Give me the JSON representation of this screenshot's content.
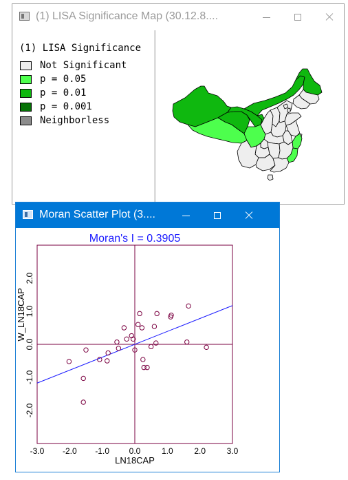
{
  "lisa_window": {
    "title": "(1) LISA Significance Map (30.12.8....",
    "legend": {
      "title": "(1) LISA Significance",
      "items": [
        {
          "label": "Not Significant",
          "color": "#eeeeee"
        },
        {
          "label": "p = 0.05",
          "color": "#4dff4d"
        },
        {
          "label": "p = 0.01",
          "color": "#0fb80f"
        },
        {
          "label": "p = 0.001",
          "color": "#067206"
        },
        {
          "label": "Neighborless",
          "color": "#8c8c8c"
        }
      ]
    }
  },
  "moran_window": {
    "title": "Moran Scatter Plot (3...."
  },
  "chart_data": {
    "type": "scatter",
    "title": "Moran's I = 0.3905",
    "xlabel": "LN18CAP",
    "ylabel": "W_LN18CAP",
    "xlim": [
      -3.0,
      3.0
    ],
    "ylim": [
      -3.0,
      3.0
    ],
    "x_ticks": [
      "-3.0",
      "-2.0",
      "-1.0",
      "0.0",
      "1.0",
      "2.0",
      "3.0"
    ],
    "y_ticks": [
      "-2.0",
      "-1.0",
      "0.0",
      "1.0",
      "2.0"
    ],
    "regression_slope": 0.3905,
    "points": [
      {
        "x": -2.02,
        "y": -0.52
      },
      {
        "x": -1.58,
        "y": -1.03
      },
      {
        "x": -1.58,
        "y": -1.75
      },
      {
        "x": -1.5,
        "y": -0.17
      },
      {
        "x": -1.08,
        "y": -0.46
      },
      {
        "x": -0.85,
        "y": -0.5
      },
      {
        "x": -0.82,
        "y": -0.26
      },
      {
        "x": -0.55,
        "y": 0.07
      },
      {
        "x": -0.5,
        "y": -0.12
      },
      {
        "x": -0.33,
        "y": 0.5
      },
      {
        "x": -0.25,
        "y": 0.16
      },
      {
        "x": -0.1,
        "y": 0.26
      },
      {
        "x": -0.05,
        "y": 0.16
      },
      {
        "x": 0.0,
        "y": -0.17
      },
      {
        "x": 0.1,
        "y": 0.6
      },
      {
        "x": 0.15,
        "y": 0.93
      },
      {
        "x": 0.22,
        "y": 0.5
      },
      {
        "x": 0.25,
        "y": -0.46
      },
      {
        "x": 0.28,
        "y": -0.7
      },
      {
        "x": 0.38,
        "y": -0.7
      },
      {
        "x": 0.5,
        "y": -0.07
      },
      {
        "x": 0.6,
        "y": 0.54
      },
      {
        "x": 0.65,
        "y": 0.04
      },
      {
        "x": 0.68,
        "y": 0.93
      },
      {
        "x": 1.12,
        "y": 0.88
      },
      {
        "x": 1.1,
        "y": 0.83
      },
      {
        "x": 1.6,
        "y": 0.07
      },
      {
        "x": 1.65,
        "y": 1.16
      },
      {
        "x": 2.2,
        "y": -0.09
      }
    ]
  }
}
